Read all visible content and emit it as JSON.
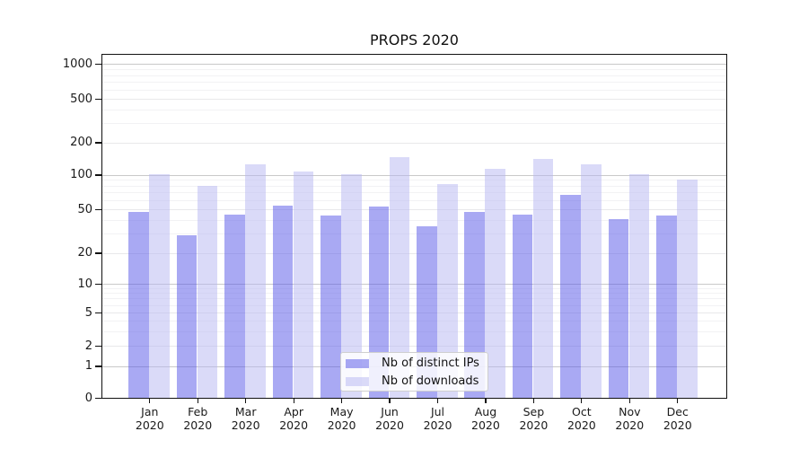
{
  "title": "PROPS 2020",
  "legend": {
    "items": [
      {
        "label": "Nb of distinct IPs",
        "color": "rgba(84,84,232,0.5)"
      },
      {
        "label": "Nb of downloads",
        "color": "rgba(182,182,242,0.5)"
      }
    ]
  },
  "y_axis": {
    "tick_labels": [
      "0",
      "1",
      "2",
      "5",
      "10",
      "20",
      "50",
      "100",
      "200",
      "500",
      "1000"
    ],
    "tick_values": [
      0,
      1,
      2,
      5,
      10,
      20,
      50,
      100,
      200,
      500,
      1000
    ]
  },
  "x_axis": {
    "labels": [
      {
        "month": "Jan",
        "year": "2020"
      },
      {
        "month": "Feb",
        "year": "2020"
      },
      {
        "month": "Mar",
        "year": "2020"
      },
      {
        "month": "Apr",
        "year": "2020"
      },
      {
        "month": "May",
        "year": "2020"
      },
      {
        "month": "Jun",
        "year": "2020"
      },
      {
        "month": "Jul",
        "year": "2020"
      },
      {
        "month": "Aug",
        "year": "2020"
      },
      {
        "month": "Sep",
        "year": "2020"
      },
      {
        "month": "Oct",
        "year": "2020"
      },
      {
        "month": "Nov",
        "year": "2020"
      },
      {
        "month": "Dec",
        "year": "2020"
      }
    ]
  },
  "chart_data": {
    "type": "bar",
    "title": "PROPS 2020",
    "categories": [
      "Jan 2020",
      "Feb 2020",
      "Mar 2020",
      "Apr 2020",
      "May 2020",
      "Jun 2020",
      "Jul 2020",
      "Aug 2020",
      "Sep 2020",
      "Oct 2020",
      "Nov 2020",
      "Dec 2020"
    ],
    "series": [
      {
        "name": "Nb of distinct IPs",
        "values": [
          48,
          29,
          45,
          54,
          44,
          53,
          35,
          48,
          45,
          67,
          41,
          44
        ],
        "color": "rgba(84,84,232,0.5)"
      },
      {
        "name": "Nb of downloads",
        "values": [
          101,
          81,
          125,
          107,
          102,
          146,
          83,
          115,
          141,
          127,
          101,
          92
        ],
        "color": "rgba(182,182,242,0.5)"
      }
    ],
    "xlabel": "",
    "ylabel": "",
    "yscale": "symlog",
    "yticks": [
      0,
      1,
      2,
      5,
      10,
      20,
      50,
      100,
      200,
      500,
      1000
    ],
    "ylim": [
      0,
      1400
    ],
    "grid": true,
    "legend_position": "bottom-center",
    "colors": {
      "major_grid": "#c9c9c9",
      "minor_grid": "#f2f2f4",
      "axis": "#111111"
    }
  }
}
